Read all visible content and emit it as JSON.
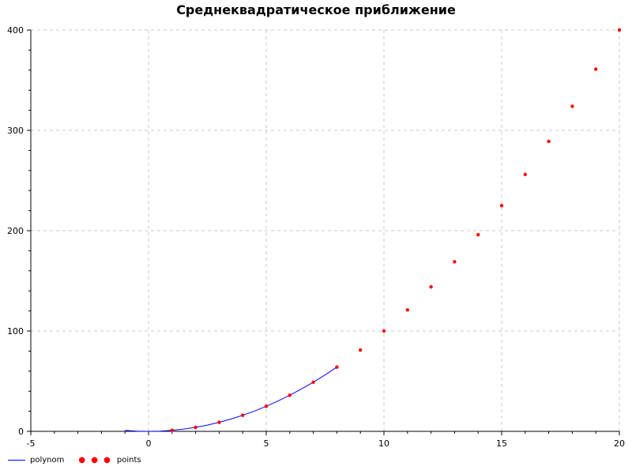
{
  "chart_data": {
    "type": "line",
    "title": "Среднеквадратическое приближение",
    "xlabel": "",
    "ylabel": "",
    "xlim": [
      -5,
      20
    ],
    "ylim": [
      0,
      400
    ],
    "x_ticks": [
      -5,
      0,
      5,
      10,
      15,
      20
    ],
    "y_ticks": [
      0,
      100,
      200,
      300,
      400
    ],
    "grid": true,
    "legend_position": "bottom-left",
    "series": [
      {
        "name": "polynom",
        "style": "line",
        "color": "#0000ff",
        "x": [
          -1,
          -0.5,
          0,
          0.5,
          1,
          1.5,
          2,
          2.5,
          3,
          3.5,
          4,
          4.5,
          5,
          5.5,
          6,
          6.5,
          7,
          7.5,
          8
        ],
        "y": [
          1,
          0.25,
          0,
          0.25,
          1,
          2.25,
          4,
          6.25,
          9,
          12.25,
          16,
          20.25,
          25,
          30.25,
          36,
          42.25,
          49,
          56.25,
          64
        ]
      },
      {
        "name": "points",
        "style": "markers",
        "color": "#ff0000",
        "x": [
          1,
          2,
          3,
          4,
          5,
          6,
          7,
          8,
          9,
          10,
          11,
          12,
          13,
          14,
          15,
          16,
          17,
          18,
          19,
          20
        ],
        "y": [
          1,
          4,
          9,
          16,
          25,
          36,
          49,
          64,
          81,
          100,
          121,
          144,
          169,
          196,
          225,
          256,
          289,
          324,
          361,
          400
        ]
      }
    ]
  }
}
